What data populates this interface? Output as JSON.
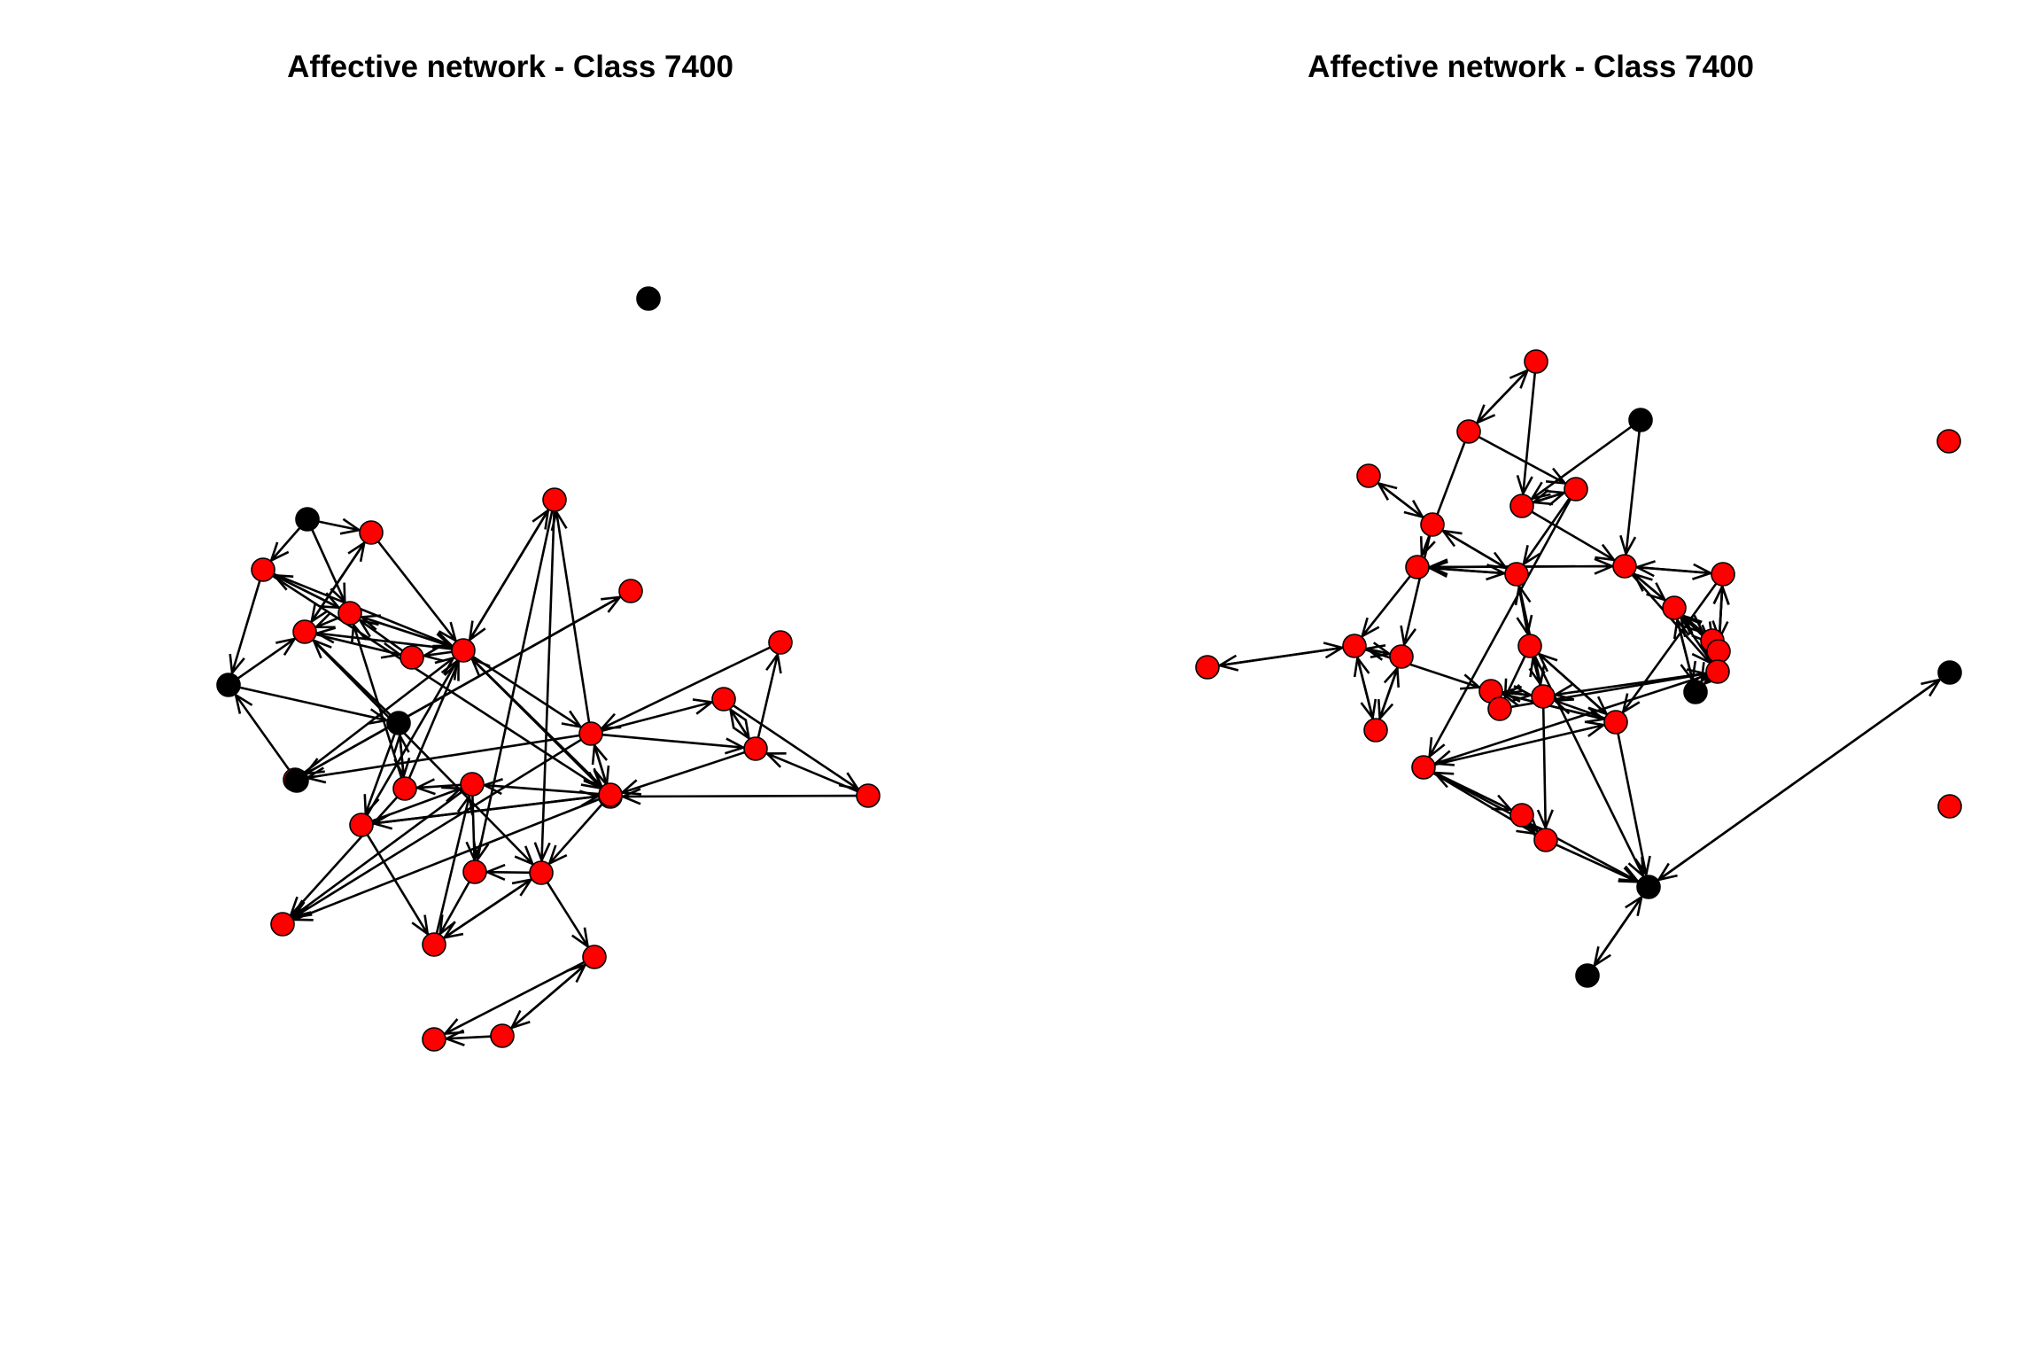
{
  "colors": {
    "red_node": "#ff0000",
    "black_node": "#000000",
    "edge": "#000000"
  },
  "panels": [
    {
      "title": "Affective network - Class 7400",
      "nodes": [
        {
          "id": "L0",
          "c": "black"
        },
        {
          "id": "L1",
          "c": "black"
        },
        {
          "id": "L2",
          "c": "red"
        },
        {
          "id": "L3",
          "c": "red"
        },
        {
          "id": "L4",
          "c": "red"
        },
        {
          "id": "L5",
          "c": "red"
        },
        {
          "id": "L6",
          "c": "black"
        },
        {
          "id": "L7",
          "c": "red"
        },
        {
          "id": "L8",
          "c": "red"
        },
        {
          "id": "L9",
          "c": "red"
        },
        {
          "id": "L10",
          "c": "red"
        },
        {
          "id": "L11",
          "c": "black"
        },
        {
          "id": "L12",
          "c": "red"
        },
        {
          "id": "L13",
          "c": "red"
        },
        {
          "id": "L14",
          "c": "red"
        },
        {
          "id": "L15",
          "c": "red"
        },
        {
          "id": "L16",
          "c": "red"
        },
        {
          "id": "L17",
          "c": "black"
        },
        {
          "id": "L18",
          "c": "red"
        },
        {
          "id": "L19",
          "c": "red"
        },
        {
          "id": "L20",
          "c": "red"
        },
        {
          "id": "L21",
          "c": "red"
        },
        {
          "id": "L22",
          "c": "red"
        },
        {
          "id": "L23",
          "c": "red"
        },
        {
          "id": "L24",
          "c": "red"
        },
        {
          "id": "L25",
          "c": "red"
        },
        {
          "id": "L26",
          "c": "red"
        },
        {
          "id": "L27",
          "c": "red"
        },
        {
          "id": "L28",
          "c": "red"
        },
        {
          "id": "L29",
          "c": "red"
        },
        {
          "id": "L30",
          "c": "red"
        }
      ],
      "edges": [
        [
          "L1",
          "L2"
        ],
        [
          "L1",
          "L3"
        ],
        [
          "L2",
          "L4"
        ],
        [
          "L3",
          "L5"
        ],
        [
          "L4",
          "L2"
        ],
        [
          "L5",
          "L4"
        ],
        [
          "L5",
          "L3"
        ],
        [
          "L4",
          "L7"
        ],
        [
          "L7",
          "L5"
        ],
        [
          "L8",
          "L4"
        ],
        [
          "L8",
          "L5"
        ],
        [
          "L3",
          "L8"
        ],
        [
          "L2",
          "L8"
        ],
        [
          "L5",
          "L8"
        ],
        [
          "L3",
          "L6"
        ],
        [
          "L6",
          "L4"
        ],
        [
          "L6",
          "L11"
        ],
        [
          "L17",
          "L6"
        ],
        [
          "L11",
          "L4"
        ],
        [
          "L8",
          "L9"
        ],
        [
          "L9",
          "L8"
        ],
        [
          "L10",
          "L12"
        ],
        [
          "L12",
          "L10"
        ],
        [
          "L12",
          "L8"
        ],
        [
          "L8",
          "L14"
        ],
        [
          "L14",
          "L9"
        ],
        [
          "L14",
          "L12"
        ],
        [
          "L13",
          "L14"
        ],
        [
          "L14",
          "L16"
        ],
        [
          "L14",
          "L15"
        ],
        [
          "L15",
          "L16"
        ],
        [
          "L16",
          "L15"
        ],
        [
          "L16",
          "L13"
        ],
        [
          "L15",
          "L18"
        ],
        [
          "L18",
          "L16"
        ],
        [
          "L14",
          "L20"
        ],
        [
          "L20",
          "L14"
        ],
        [
          "L16",
          "L20"
        ],
        [
          "L18",
          "L20"
        ],
        [
          "L11",
          "L19"
        ],
        [
          "L19",
          "L11"
        ],
        [
          "L11",
          "L22"
        ],
        [
          "L23",
          "L22"
        ],
        [
          "L22",
          "L23"
        ],
        [
          "L22",
          "L8"
        ],
        [
          "L19",
          "L5"
        ],
        [
          "L19",
          "L8"
        ],
        [
          "L19",
          "L24"
        ],
        [
          "L21",
          "L19"
        ],
        [
          "L21",
          "L25"
        ],
        [
          "L23",
          "L21"
        ],
        [
          "L23",
          "L24"
        ],
        [
          "L23",
          "L26"
        ],
        [
          "L26",
          "L25"
        ],
        [
          "L26",
          "L27"
        ],
        [
          "L27",
          "L21"
        ],
        [
          "L27",
          "L26"
        ],
        [
          "L28",
          "L30"
        ],
        [
          "L26",
          "L28"
        ],
        [
          "L28",
          "L29"
        ],
        [
          "L29",
          "L28"
        ],
        [
          "L29",
          "L30"
        ],
        [
          "L25",
          "L27"
        ],
        [
          "L21",
          "L24"
        ],
        [
          "L22",
          "L27"
        ],
        [
          "L14",
          "L24"
        ],
        [
          "L9",
          "L26"
        ],
        [
          "L8",
          "L23"
        ],
        [
          "L23",
          "L8"
        ],
        [
          "L3",
          "L23"
        ],
        [
          "L8",
          "L20"
        ],
        [
          "L9",
          "L25"
        ],
        [
          "L8",
          "L7"
        ],
        [
          "L1",
          "L5"
        ],
        [
          "L22",
          "L21"
        ],
        [
          "L4",
          "L26"
        ]
      ]
    },
    {
      "title": "Affective network - Class 7400",
      "nodes": [
        {
          "id": "R0",
          "c": "red"
        },
        {
          "id": "R1",
          "c": "red"
        },
        {
          "id": "R2",
          "c": "black"
        },
        {
          "id": "R3",
          "c": "red"
        },
        {
          "id": "R4",
          "c": "red"
        },
        {
          "id": "R5",
          "c": "red"
        },
        {
          "id": "R6",
          "c": "red"
        },
        {
          "id": "R7",
          "c": "red"
        },
        {
          "id": "R8",
          "c": "red"
        },
        {
          "id": "R9",
          "c": "red"
        },
        {
          "id": "R10",
          "c": "red"
        },
        {
          "id": "R11",
          "c": "red"
        },
        {
          "id": "R12",
          "c": "red"
        },
        {
          "id": "R13",
          "c": "red"
        },
        {
          "id": "R14",
          "c": "red"
        },
        {
          "id": "R15",
          "c": "red"
        },
        {
          "id": "R16",
          "c": "black"
        },
        {
          "id": "R17",
          "c": "red"
        },
        {
          "id": "R18",
          "c": "red"
        },
        {
          "id": "R19",
          "c": "red"
        },
        {
          "id": "R20",
          "c": "red"
        },
        {
          "id": "R21",
          "c": "red"
        },
        {
          "id": "R22",
          "c": "red"
        },
        {
          "id": "R23",
          "c": "red"
        },
        {
          "id": "R24",
          "c": "red"
        },
        {
          "id": "R25",
          "c": "red"
        },
        {
          "id": "R26",
          "c": "red"
        },
        {
          "id": "R27",
          "c": "red"
        },
        {
          "id": "R28",
          "c": "black"
        },
        {
          "id": "R29",
          "c": "black"
        },
        {
          "id": "R30",
          "c": "black"
        },
        {
          "id": "R31",
          "c": "red"
        },
        {
          "id": "R32",
          "c": "red"
        }
      ],
      "edges": [
        [
          "R0",
          "R1"
        ],
        [
          "R1",
          "R0"
        ],
        [
          "R1",
          "R7"
        ],
        [
          "R0",
          "R4"
        ],
        [
          "R2",
          "R4"
        ],
        [
          "R2",
          "R9"
        ],
        [
          "R4",
          "R5"
        ],
        [
          "R5",
          "R4"
        ],
        [
          "R4",
          "R9"
        ],
        [
          "R1",
          "R5"
        ],
        [
          "R3",
          "R6"
        ],
        [
          "R6",
          "R3"
        ],
        [
          "R6",
          "R8"
        ],
        [
          "R8",
          "R6"
        ],
        [
          "R5",
          "R8"
        ],
        [
          "R7",
          "R8"
        ],
        [
          "R8",
          "R7"
        ],
        [
          "R7",
          "R9"
        ],
        [
          "R9",
          "R7"
        ],
        [
          "R9",
          "R10"
        ],
        [
          "R10",
          "R9"
        ],
        [
          "R9",
          "R11"
        ],
        [
          "R11",
          "R9"
        ],
        [
          "R11",
          "R12"
        ],
        [
          "R12",
          "R11"
        ],
        [
          "R11",
          "R13"
        ],
        [
          "R13",
          "R11"
        ],
        [
          "R10",
          "R13"
        ],
        [
          "R13",
          "R10"
        ],
        [
          "R11",
          "R16"
        ],
        [
          "R16",
          "R11"
        ],
        [
          "R13",
          "R16"
        ],
        [
          "R12",
          "R13"
        ],
        [
          "R14",
          "R15"
        ],
        [
          "R15",
          "R14"
        ],
        [
          "R14",
          "R18"
        ],
        [
          "R18",
          "R14"
        ],
        [
          "R14",
          "R19"
        ],
        [
          "R15",
          "R18"
        ],
        [
          "R18",
          "R15"
        ],
        [
          "R19",
          "R22"
        ],
        [
          "R22",
          "R19"
        ],
        [
          "R20",
          "R19"
        ],
        [
          "R19",
          "R20"
        ],
        [
          "R20",
          "R21"
        ],
        [
          "R21",
          "R22"
        ],
        [
          "R22",
          "R21"
        ],
        [
          "R20",
          "R25"
        ],
        [
          "R26",
          "R20"
        ],
        [
          "R21",
          "R27"
        ],
        [
          "R27",
          "R26"
        ],
        [
          "R26",
          "R23"
        ],
        [
          "R23",
          "R24"
        ],
        [
          "R24",
          "R23"
        ],
        [
          "R24",
          "R25"
        ],
        [
          "R25",
          "R24"
        ],
        [
          "R23",
          "R25"
        ],
        [
          "R25",
          "R28"
        ],
        [
          "R28",
          "R29"
        ],
        [
          "R29",
          "R28"
        ],
        [
          "R30",
          "R28"
        ],
        [
          "R28",
          "R30"
        ],
        [
          "R22",
          "R28"
        ],
        [
          "R23",
          "R28"
        ],
        [
          "R21",
          "R28"
        ],
        [
          "R26",
          "R16"
        ],
        [
          "R26",
          "R11"
        ],
        [
          "R26",
          "R10"
        ],
        [
          "R8",
          "R20"
        ],
        [
          "R8",
          "R21"
        ],
        [
          "R7",
          "R14"
        ],
        [
          "R17",
          "R14"
        ],
        [
          "R5",
          "R23"
        ],
        [
          "R6",
          "R15"
        ],
        [
          "R14",
          "R17"
        ],
        [
          "R9",
          "R26"
        ],
        [
          "R23",
          "R22"
        ],
        [
          "R10",
          "R22"
        ],
        [
          "R12",
          "R26"
        ],
        [
          "R20",
          "R8"
        ],
        [
          "R22",
          "R20"
        ]
      ]
    }
  ]
}
